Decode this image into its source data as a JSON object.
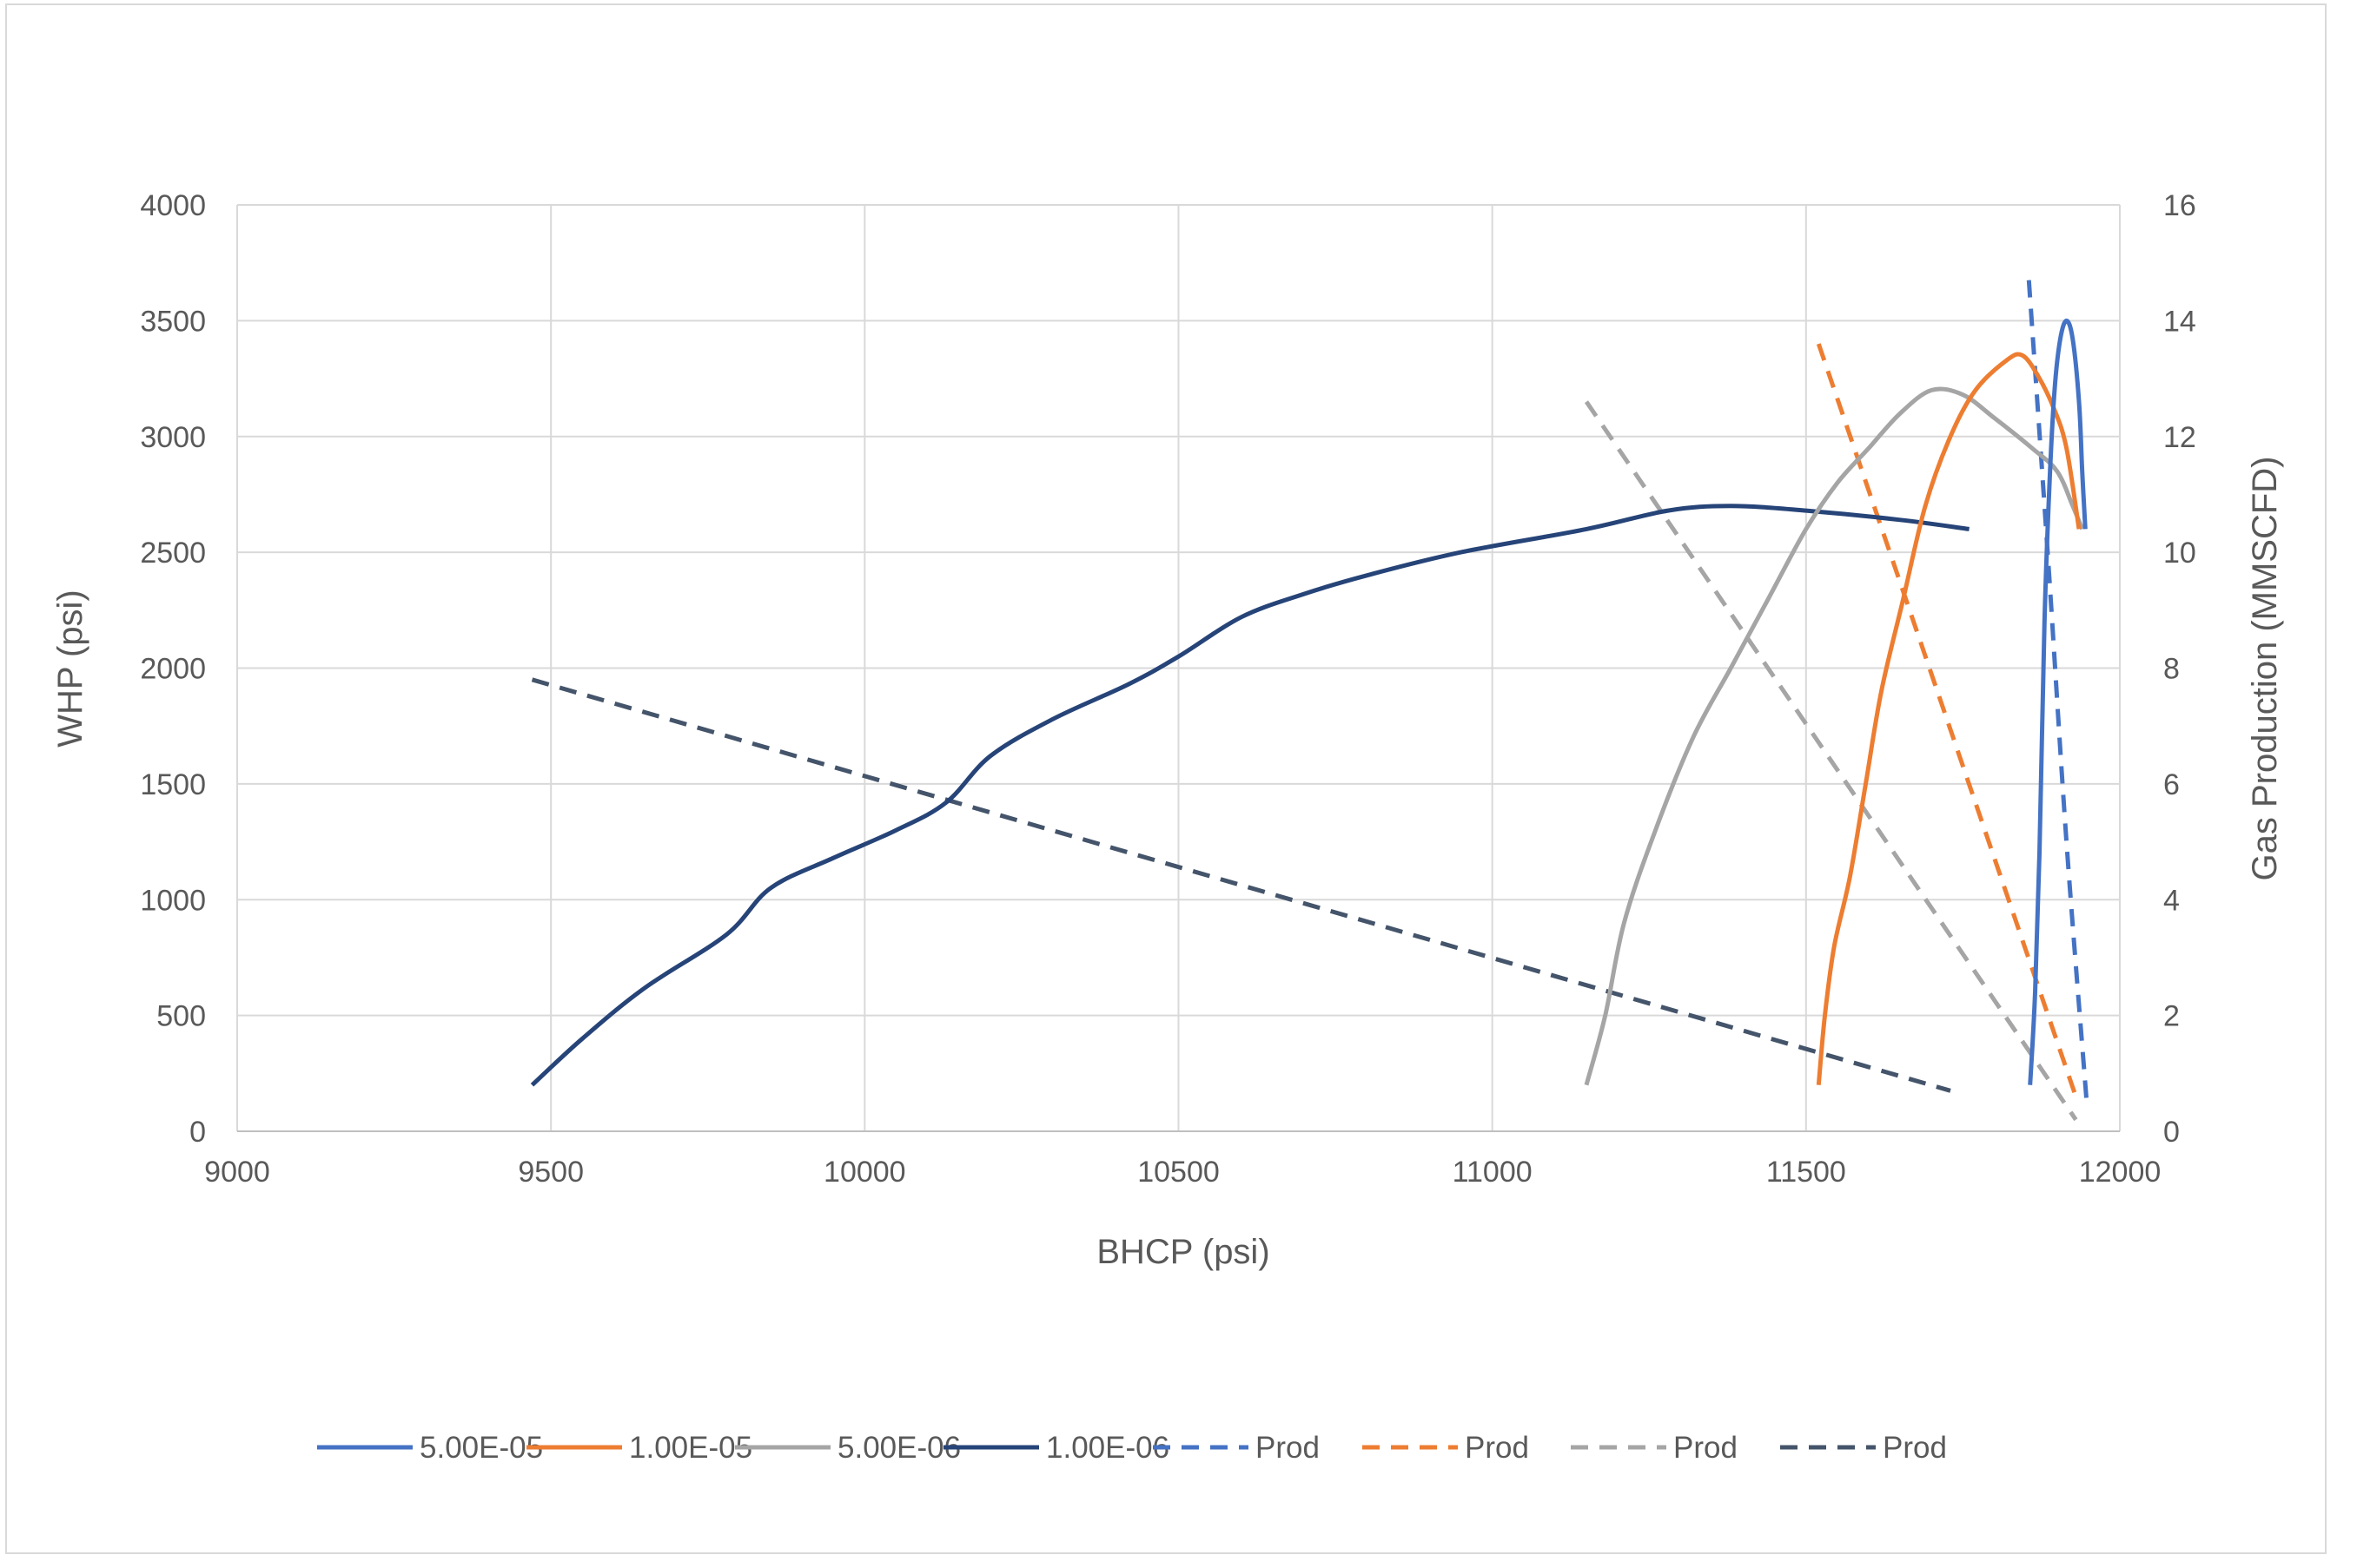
{
  "chart_data": {
    "type": "line",
    "title": "",
    "xlabel": "BHCP (psi)",
    "ylabel": "WHP (psi)",
    "y2label": "Gas Production (MMSCFD)",
    "xlim": [
      9000,
      12000
    ],
    "ylim": [
      0,
      4000
    ],
    "y2lim": [
      0,
      16
    ],
    "x_ticks": [
      9000,
      9500,
      10000,
      10500,
      11000,
      11500,
      12000
    ],
    "y_ticks": [
      0,
      500,
      1000,
      1500,
      2000,
      2500,
      3000,
      3500,
      4000
    ],
    "y2_ticks": [
      0,
      2,
      4,
      6,
      8,
      10,
      12,
      14,
      16
    ],
    "grid": true,
    "legend_position": "bottom",
    "series": [
      {
        "name": "5.00E-05",
        "axis": "left",
        "style": "solid",
        "color": "#4472C4",
        "points": [
          [
            11857,
            200
          ],
          [
            11865,
            600
          ],
          [
            11872,
            1200
          ],
          [
            11880,
            2200
          ],
          [
            11888,
            2800
          ],
          [
            11896,
            3200
          ],
          [
            11905,
            3420
          ],
          [
            11915,
            3500
          ],
          [
            11925,
            3420
          ],
          [
            11935,
            3150
          ],
          [
            11940,
            2850
          ],
          [
            11945,
            2600
          ]
        ]
      },
      {
        "name": "1.00E-05",
        "axis": "left",
        "style": "solid",
        "color": "#ED7D31",
        "points": [
          [
            11520,
            200
          ],
          [
            11530,
            500
          ],
          [
            11545,
            800
          ],
          [
            11570,
            1100
          ],
          [
            11595,
            1500
          ],
          [
            11620,
            1900
          ],
          [
            11655,
            2300
          ],
          [
            11690,
            2700
          ],
          [
            11730,
            3000
          ],
          [
            11770,
            3200
          ],
          [
            11820,
            3330
          ],
          [
            11845,
            3350
          ],
          [
            11870,
            3260
          ],
          [
            11895,
            3120
          ],
          [
            11915,
            2950
          ],
          [
            11935,
            2600
          ]
        ]
      },
      {
        "name": "5.00E-06",
        "axis": "left",
        "style": "solid",
        "color": "#A5A5A5",
        "points": [
          [
            11150,
            200
          ],
          [
            11180,
            500
          ],
          [
            11210,
            900
          ],
          [
            11260,
            1300
          ],
          [
            11320,
            1700
          ],
          [
            11380,
            2000
          ],
          [
            11440,
            2300
          ],
          [
            11500,
            2600
          ],
          [
            11550,
            2800
          ],
          [
            11600,
            2950
          ],
          [
            11650,
            3100
          ],
          [
            11700,
            3200
          ],
          [
            11750,
            3180
          ],
          [
            11800,
            3080
          ],
          [
            11860,
            2950
          ],
          [
            11900,
            2850
          ],
          [
            11925,
            2700
          ],
          [
            11940,
            2600
          ]
        ]
      },
      {
        "name": "1.00E-06",
        "axis": "left",
        "style": "solid",
        "color": "#264478",
        "points": [
          [
            9470,
            200
          ],
          [
            9550,
            400
          ],
          [
            9650,
            620
          ],
          [
            9780,
            850
          ],
          [
            9850,
            1050
          ],
          [
            9950,
            1180
          ],
          [
            10050,
            1300
          ],
          [
            10130,
            1420
          ],
          [
            10200,
            1620
          ],
          [
            10300,
            1780
          ],
          [
            10420,
            1930
          ],
          [
            10500,
            2050
          ],
          [
            10600,
            2220
          ],
          [
            10700,
            2320
          ],
          [
            10800,
            2400
          ],
          [
            10950,
            2500
          ],
          [
            11150,
            2600
          ],
          [
            11280,
            2680
          ],
          [
            11380,
            2700
          ],
          [
            11500,
            2680
          ],
          [
            11650,
            2640
          ],
          [
            11760,
            2600
          ]
        ]
      },
      {
        "name": "Prod",
        "axis": "right",
        "style": "dashed",
        "color": "#4472C4",
        "points": [
          [
            11855,
            14.7
          ],
          [
            11885,
            10.0
          ],
          [
            11915,
            5.0
          ],
          [
            11948,
            0.4
          ]
        ]
      },
      {
        "name": "Prod",
        "axis": "right",
        "style": "dashed",
        "color": "#ED7D31",
        "points": [
          [
            11520,
            13.6
          ],
          [
            11930,
            0.6
          ]
        ]
      },
      {
        "name": "Prod",
        "axis": "right",
        "style": "dashed",
        "color": "#A5A5A5",
        "points": [
          [
            11150,
            12.6
          ],
          [
            11930,
            0.2
          ]
        ]
      },
      {
        "name": "Prod",
        "axis": "right",
        "style": "dashed",
        "color": "#44546A",
        "points": [
          [
            9470,
            7.8
          ],
          [
            11730,
            0.7
          ]
        ]
      }
    ]
  }
}
